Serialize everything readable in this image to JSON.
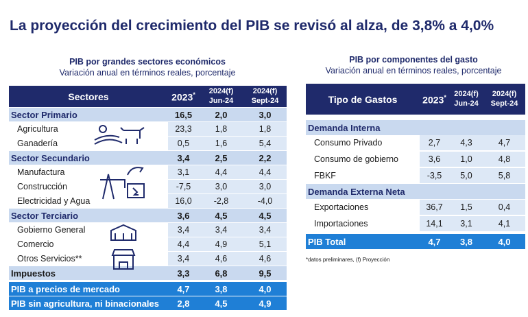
{
  "title": "La proyección del crecimiento del PIB se revisó al alza, de 3,8% a 4,0%",
  "left_table": {
    "heading": "PIB por grandes sectores económicos",
    "subheading": "Variación anual en términos reales, porcentaje",
    "columns": [
      {
        "text": "Sectores"
      },
      {
        "text": "2023",
        "mark": "*"
      },
      {
        "text": "2024(f)",
        "sub": "Jun-24"
      },
      {
        "text": "2024(f)",
        "sub": "Sept-24"
      }
    ],
    "rows": [
      {
        "style": "section",
        "cells": [
          "Sector Primario",
          "16,5",
          "2,0",
          "3,0"
        ]
      },
      {
        "style": "item",
        "cells": [
          "Agricultura",
          "23,3",
          "1,8",
          "1,8"
        ]
      },
      {
        "style": "item",
        "cells": [
          "Ganadería",
          "0,5",
          "1,6",
          "5,4"
        ]
      },
      {
        "style": "section",
        "cells": [
          "Sector Secundario",
          "3,4",
          "2,5",
          "2,2"
        ]
      },
      {
        "style": "item",
        "cells": [
          "Manufactura",
          "3,1",
          "4,4",
          "4,4"
        ]
      },
      {
        "style": "item",
        "cells": [
          "Construcción",
          "-7,5",
          "3,0",
          "3,0"
        ]
      },
      {
        "style": "item",
        "cells": [
          "Electricidad y Agua",
          "16,0",
          "-2,8",
          "-4,0"
        ]
      },
      {
        "style": "section",
        "cells": [
          "Sector Terciario",
          "3,6",
          "4,5",
          "4,5"
        ]
      },
      {
        "style": "item",
        "cells": [
          "Gobierno General",
          "3,4",
          "3,4",
          "3,4"
        ]
      },
      {
        "style": "item",
        "cells": [
          "Comercio",
          "4,4",
          "4,9",
          "5,1"
        ]
      },
      {
        "style": "item",
        "cells": [
          "Otros Servicios**",
          "3,4",
          "4,6",
          "4,6"
        ]
      },
      {
        "style": "plain",
        "cells": [
          "Impuestos",
          "3,3",
          "6,8",
          "9,5"
        ]
      },
      {
        "style": "total",
        "cells": [
          "PIB a precios de mercado",
          "4,7",
          "3,8",
          "4,0"
        ]
      },
      {
        "style": "total",
        "cells": [
          "PIB sin agricultura, ni binacionales",
          "2,8",
          "4,5",
          "4,9"
        ]
      }
    ]
  },
  "right_table": {
    "heading": "PIB por componentes del gasto",
    "subheading": "Variación anual en términos reales, porcentaje",
    "columns": [
      {
        "text": "Tipo de Gastos"
      },
      {
        "text": "2023",
        "mark": "*"
      },
      {
        "text": "2024(f)",
        "sub": "Jun-24"
      },
      {
        "text": "2024(f)",
        "sub": "Sept-24"
      }
    ],
    "rows": [
      {
        "style": "section",
        "cells": [
          "Demanda Interna"
        ]
      },
      {
        "style": "item",
        "cells": [
          "Consumo Privado",
          "2,7",
          "4,3",
          "4,7"
        ]
      },
      {
        "style": "item",
        "cells": [
          "Consumo de gobierno",
          "3,6",
          "1,0",
          "4,8"
        ]
      },
      {
        "style": "item",
        "cells": [
          "FBKF",
          "-3,5",
          "5,0",
          "5,8"
        ]
      },
      {
        "style": "section",
        "cells": [
          "Demanda Externa Neta"
        ]
      },
      {
        "style": "item",
        "cells": [
          "Exportaciones",
          "36,7",
          "1,5",
          "0,4"
        ]
      },
      {
        "style": "item",
        "cells": [
          "Importaciones",
          "14,1",
          "3,1",
          "4,1"
        ]
      },
      {
        "style": "total",
        "cells": [
          "PIB Total",
          "4,7",
          "3,8",
          "4,0"
        ]
      }
    ]
  },
  "footnote": "*datos preliminares, (f) Proyección"
}
